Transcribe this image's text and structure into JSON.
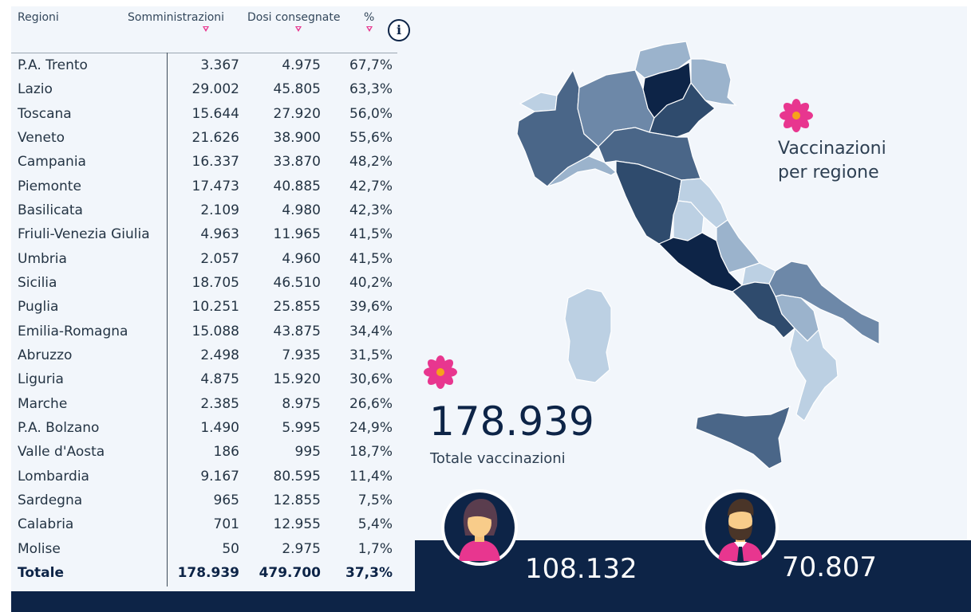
{
  "table": {
    "headers": {
      "region": "Regioni",
      "administrations": "Somministrazioni",
      "doses": "Dosi consegnate",
      "percent": "%"
    },
    "info_label": "i",
    "rows": [
      {
        "region": "P.A. Trento",
        "administrations": "3.367",
        "doses": "4.975",
        "percent": "67,7%"
      },
      {
        "region": "Lazio",
        "administrations": "29.002",
        "doses": "45.805",
        "percent": "63,3%"
      },
      {
        "region": "Toscana",
        "administrations": "15.644",
        "doses": "27.920",
        "percent": "56,0%"
      },
      {
        "region": "Veneto",
        "administrations": "21.626",
        "doses": "38.900",
        "percent": "55,6%"
      },
      {
        "region": "Campania",
        "administrations": "16.337",
        "doses": "33.870",
        "percent": "48,2%"
      },
      {
        "region": "Piemonte",
        "administrations": "17.473",
        "doses": "40.885",
        "percent": "42,7%"
      },
      {
        "region": "Basilicata",
        "administrations": "2.109",
        "doses": "4.980",
        "percent": "42,3%"
      },
      {
        "region": "Friuli-Venezia Giulia",
        "administrations": "4.963",
        "doses": "11.965",
        "percent": "41,5%"
      },
      {
        "region": "Umbria",
        "administrations": "2.057",
        "doses": "4.960",
        "percent": "41,5%"
      },
      {
        "region": "Sicilia",
        "administrations": "18.705",
        "doses": "46.510",
        "percent": "40,2%"
      },
      {
        "region": "Puglia",
        "administrations": "10.251",
        "doses": "25.855",
        "percent": "39,6%"
      },
      {
        "region": "Emilia-Romagna",
        "administrations": "15.088",
        "doses": "43.875",
        "percent": "34,4%"
      },
      {
        "region": "Abruzzo",
        "administrations": "2.498",
        "doses": "7.935",
        "percent": "31,5%"
      },
      {
        "region": "Liguria",
        "administrations": "4.875",
        "doses": "15.920",
        "percent": "30,6%"
      },
      {
        "region": "Marche",
        "administrations": "2.385",
        "doses": "8.975",
        "percent": "26,6%"
      },
      {
        "region": "P.A. Bolzano",
        "administrations": "1.490",
        "doses": "5.995",
        "percent": "24,9%"
      },
      {
        "region": "Valle d'Aosta",
        "administrations": "186",
        "doses": "995",
        "percent": "18,7%"
      },
      {
        "region": "Lombardia",
        "administrations": "9.167",
        "doses": "80.595",
        "percent": "11,4%"
      },
      {
        "region": "Sardegna",
        "administrations": "965",
        "doses": "12.855",
        "percent": "7,5%"
      },
      {
        "region": "Calabria",
        "administrations": "701",
        "doses": "12.955",
        "percent": "5,4%"
      },
      {
        "region": "Molise",
        "administrations": "50",
        "doses": "2.975",
        "percent": "1,7%"
      }
    ],
    "total": {
      "region": "Totale",
      "administrations": "178.939",
      "doses": "479.700",
      "percent": "37,3%"
    }
  },
  "map": {
    "title_line1": "Vaccinazioni",
    "title_line2": "per regione",
    "colors": {
      "darkest": "#0d2447",
      "dark": "#2f4b6d",
      "mid_dark": "#4a6688",
      "mid": "#6d88a8",
      "light": "#9bb3cc",
      "lightest": "#bcd0e3"
    }
  },
  "summary": {
    "total_value": "178.939",
    "total_label": "Totale vaccinazioni",
    "female_count": "108.132",
    "male_count": "70.807"
  },
  "colors": {
    "navy": "#0d2447",
    "panel": "#f2f6fb",
    "accent_pink": "#e8368f",
    "flower_center": "#f7a21b"
  },
  "icons": [
    "flower-icon",
    "female-avatar-icon",
    "male-avatar-icon",
    "info-icon",
    "sort-arrow-icon"
  ]
}
